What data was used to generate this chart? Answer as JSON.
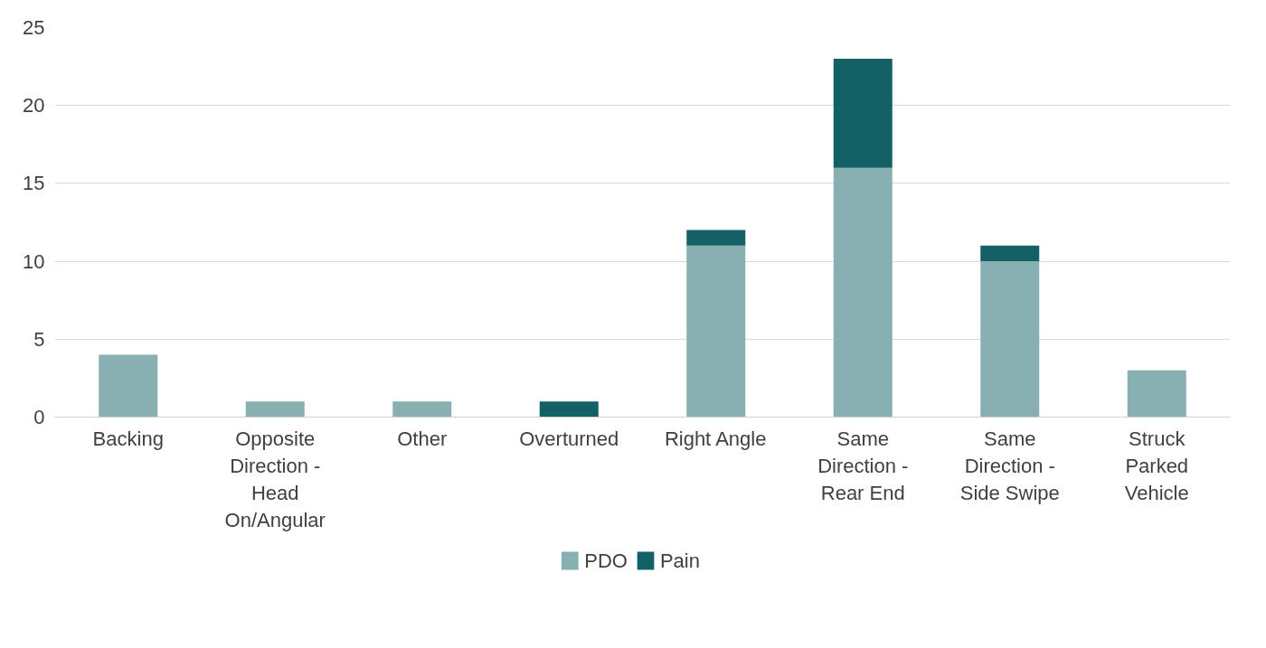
{
  "chart_data": {
    "type": "bar",
    "stacked": true,
    "categories": [
      "Backing",
      "Opposite Direction - Head On/Angular",
      "Other",
      "Overturned",
      "Right Angle",
      "Same Direction - Rear End",
      "Same Direction - Side Swipe",
      "Struck Parked Vehicle"
    ],
    "series": [
      {
        "name": "PDO",
        "color": "#88b0b3",
        "values": [
          4,
          1,
          1,
          0,
          11,
          16,
          10,
          3
        ]
      },
      {
        "name": "Pain",
        "color": "#136066",
        "values": [
          0,
          0,
          0,
          1,
          1,
          7,
          1,
          0
        ]
      }
    ],
    "ylim": [
      0,
      25
    ],
    "yticks": [
      0,
      5,
      10,
      15,
      20,
      25
    ],
    "grid": "y",
    "legend": "bottom"
  }
}
